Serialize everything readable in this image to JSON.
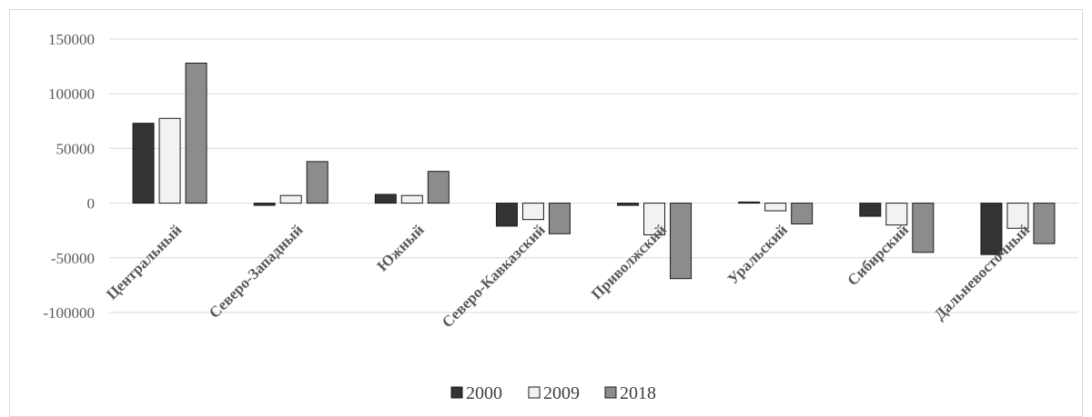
{
  "chart_data": {
    "type": "bar",
    "title": "",
    "xlabel": "",
    "ylabel": "",
    "categories": [
      "Центральный",
      "Северо-Западный",
      "Южный",
      "Северо-Кавказский",
      "Приволжский",
      "Уральский",
      "Сибирский",
      "Дальневосточный"
    ],
    "series": [
      {
        "name": "2000",
        "color": "#333333",
        "values": [
          73000,
          -2000,
          8000,
          -21000,
          -2000,
          1000,
          -12000,
          -47000
        ]
      },
      {
        "name": "2009",
        "color": "#f2f2f2",
        "values": [
          77500,
          7000,
          7000,
          -15000,
          -29000,
          -7000,
          -20000,
          -23000
        ]
      },
      {
        "name": "2018",
        "color": "#8c8c8c",
        "values": [
          128000,
          38000,
          29000,
          -28000,
          -69000,
          -19000,
          -45000,
          -37000
        ]
      }
    ],
    "yticks": [
      "150000",
      "100000",
      "50000",
      "0",
      "-50000",
      "-100000"
    ],
    "ylim": [
      -100000,
      150000
    ],
    "grid": true,
    "legend_position": "bottom"
  }
}
